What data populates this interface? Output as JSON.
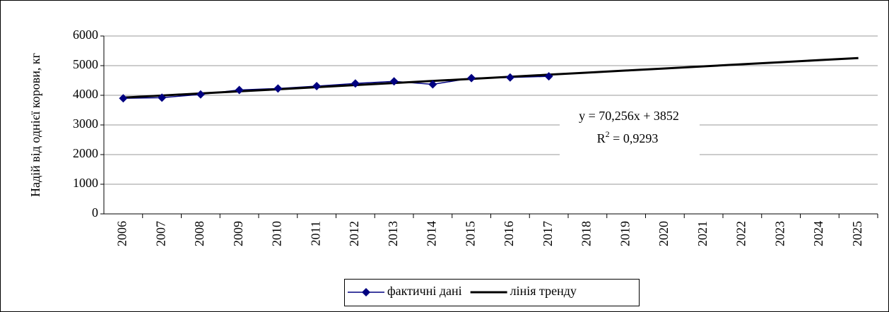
{
  "chart_data": {
    "type": "line",
    "y_label": "Надій від однієї корови, кг",
    "annotation": {
      "equation": "y = 70,256x + 3852",
      "r_label": "R",
      "r_sup": "2",
      "r_value": " = 0,9293"
    },
    "categories": [
      "2006",
      "2007",
      "2008",
      "2009",
      "2010",
      "2011",
      "2012",
      "2013",
      "2014",
      "2015",
      "2016",
      "2017",
      "2018",
      "2019",
      "2020",
      "2021",
      "2022",
      "2023",
      "2024",
      "2025"
    ],
    "series": [
      {
        "name": "фактичні дані",
        "color": "#000080",
        "marker": "diamond",
        "values": [
          3900,
          3920,
          4030,
          4180,
          4230,
          4310,
          4400,
          4470,
          4370,
          4580,
          4600,
          4640,
          null,
          null,
          null,
          null,
          null,
          null,
          null,
          null
        ]
      },
      {
        "name": "лінія тренду",
        "color": "#000000",
        "marker": "none",
        "values": [
          3922.256,
          3992.512,
          4062.768,
          4133.024,
          4203.28,
          4273.536,
          4343.792,
          4414.048,
          4484.304,
          4554.56,
          4624.816,
          4695.072,
          4765.328,
          4835.584,
          4905.84,
          4976.096,
          5046.352,
          5116.608,
          5186.864,
          5257.12
        ]
      }
    ],
    "ylim": [
      0,
      6000
    ],
    "yticks": [
      0,
      1000,
      2000,
      3000,
      4000,
      5000,
      6000
    ],
    "grid": true
  }
}
